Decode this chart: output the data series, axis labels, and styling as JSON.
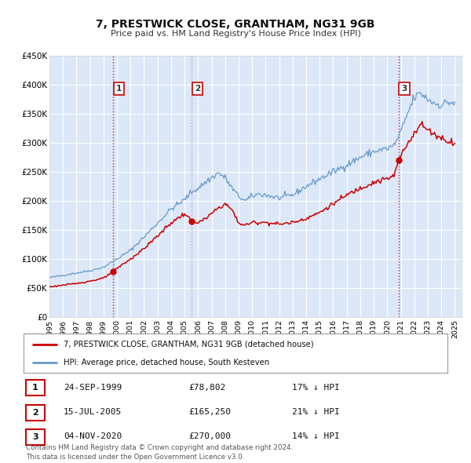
{
  "title": "7, PRESTWICK CLOSE, GRANTHAM, NG31 9GB",
  "subtitle": "Price paid vs. HM Land Registry's House Price Index (HPI)",
  "ylim": [
    0,
    450000
  ],
  "yticks": [
    0,
    50000,
    100000,
    150000,
    200000,
    250000,
    300000,
    350000,
    400000,
    450000
  ],
  "ytick_labels": [
    "£0",
    "£50K",
    "£100K",
    "£150K",
    "£200K",
    "£250K",
    "£300K",
    "£350K",
    "£400K",
    "£450K"
  ],
  "xlim_start": 1995.0,
  "xlim_end": 2025.5,
  "xticks": [
    1995,
    1996,
    1997,
    1998,
    1999,
    2000,
    2001,
    2002,
    2003,
    2004,
    2005,
    2006,
    2007,
    2008,
    2009,
    2010,
    2011,
    2012,
    2013,
    2014,
    2015,
    2016,
    2017,
    2018,
    2019,
    2020,
    2021,
    2022,
    2023,
    2024,
    2025
  ],
  "outer_bg_color": "#ffffff",
  "plot_bg_color": "#dce8f8",
  "grid_color": "#ffffff",
  "red_line_color": "#cc0000",
  "blue_line_color": "#6699cc",
  "marker_color": "#cc0000",
  "sale_points": [
    {
      "year": 1999.73,
      "price": 78802,
      "label": "1",
      "vline_style": "dashed_red"
    },
    {
      "year": 2005.54,
      "price": 165250,
      "label": "2",
      "vline_style": "dashed_blue"
    },
    {
      "year": 2020.84,
      "price": 270000,
      "label": "3",
      "vline_style": "dashed_red"
    }
  ],
  "legend_label_red": "7, PRESTWICK CLOSE, GRANTHAM, NG31 9GB (detached house)",
  "legend_label_blue": "HPI: Average price, detached house, South Kesteven",
  "table_rows": [
    {
      "num": "1",
      "date": "24-SEP-1999",
      "price": "£78,802",
      "hpi": "17% ↓ HPI"
    },
    {
      "num": "2",
      "date": "15-JUL-2005",
      "price": "£165,250",
      "hpi": "21% ↓ HPI"
    },
    {
      "num": "3",
      "date": "04-NOV-2020",
      "price": "£270,000",
      "hpi": "14% ↓ HPI"
    }
  ],
  "footer": "Contains HM Land Registry data © Crown copyright and database right 2024.\nThis data is licensed under the Open Government Licence v3.0."
}
